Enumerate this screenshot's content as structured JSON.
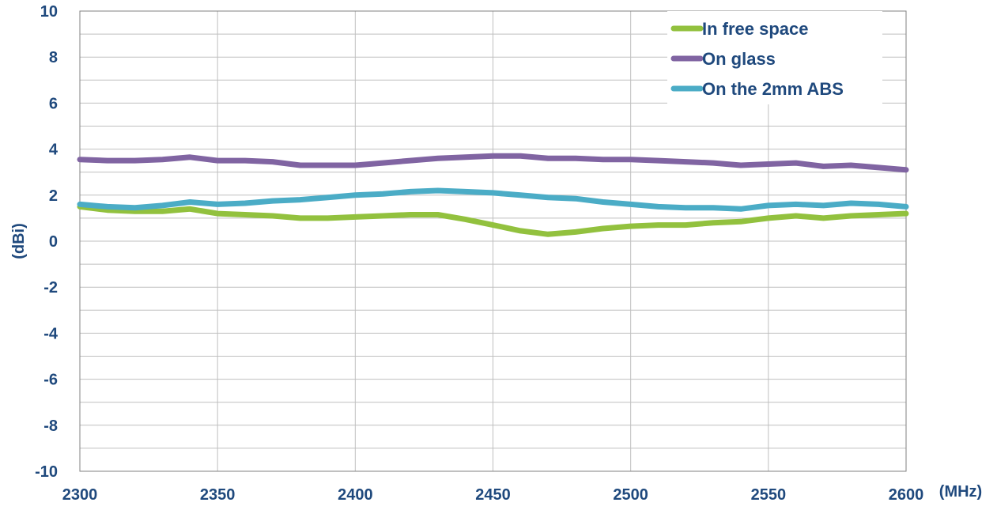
{
  "chart_data": {
    "type": "line",
    "title": "",
    "xlabel": "(MHz)",
    "ylabel": "(dBi)",
    "xlim": [
      2300,
      2600
    ],
    "ylim": [
      -10,
      10
    ],
    "x_ticks": [
      2300,
      2350,
      2400,
      2450,
      2500,
      2550,
      2600
    ],
    "y_ticks": [
      -10,
      -8,
      -6,
      -4,
      -2,
      0,
      2,
      4,
      6,
      8,
      10
    ],
    "x_tick_labels": [
      "2300",
      "2350",
      "2400",
      "2450",
      "2500",
      "2550",
      "2600"
    ],
    "y_tick_labels": [
      "-10",
      "-8",
      "-6",
      "-4",
      "-2",
      "0",
      "2",
      "4",
      "6",
      "8",
      "10"
    ],
    "grid": true,
    "grid_minor_y": true,
    "legend_position": "top-right",
    "label_color": "#1f497d",
    "grid_color": "#bfbfbf",
    "x": [
      2300,
      2310,
      2320,
      2330,
      2340,
      2350,
      2360,
      2370,
      2380,
      2390,
      2400,
      2410,
      2420,
      2430,
      2440,
      2450,
      2460,
      2470,
      2480,
      2490,
      2500,
      2510,
      2520,
      2530,
      2540,
      2550,
      2560,
      2570,
      2580,
      2590,
      2600
    ],
    "series": [
      {
        "name": "In free space",
        "color": "#92c13e",
        "values": [
          1.5,
          1.35,
          1.3,
          1.3,
          1.4,
          1.2,
          1.15,
          1.1,
          1.0,
          1.0,
          1.05,
          1.1,
          1.15,
          1.15,
          0.95,
          0.7,
          0.45,
          0.3,
          0.4,
          0.55,
          0.65,
          0.7,
          0.7,
          0.8,
          0.85,
          1.0,
          1.1,
          1.0,
          1.1,
          1.15,
          1.2
        ]
      },
      {
        "name": "On glass",
        "color": "#8064a2",
        "values": [
          3.55,
          3.5,
          3.5,
          3.55,
          3.65,
          3.5,
          3.5,
          3.45,
          3.3,
          3.3,
          3.3,
          3.4,
          3.5,
          3.6,
          3.65,
          3.7,
          3.7,
          3.6,
          3.6,
          3.55,
          3.55,
          3.5,
          3.45,
          3.4,
          3.3,
          3.35,
          3.4,
          3.25,
          3.3,
          3.2,
          3.1
        ]
      },
      {
        "name": "On the 2mm ABS",
        "color": "#4bacc6",
        "values": [
          1.6,
          1.5,
          1.45,
          1.55,
          1.7,
          1.6,
          1.65,
          1.75,
          1.8,
          1.9,
          2.0,
          2.05,
          2.15,
          2.2,
          2.15,
          2.1,
          2.0,
          1.9,
          1.85,
          1.7,
          1.6,
          1.5,
          1.45,
          1.45,
          1.4,
          1.55,
          1.6,
          1.55,
          1.65,
          1.6,
          1.5
        ]
      }
    ]
  }
}
